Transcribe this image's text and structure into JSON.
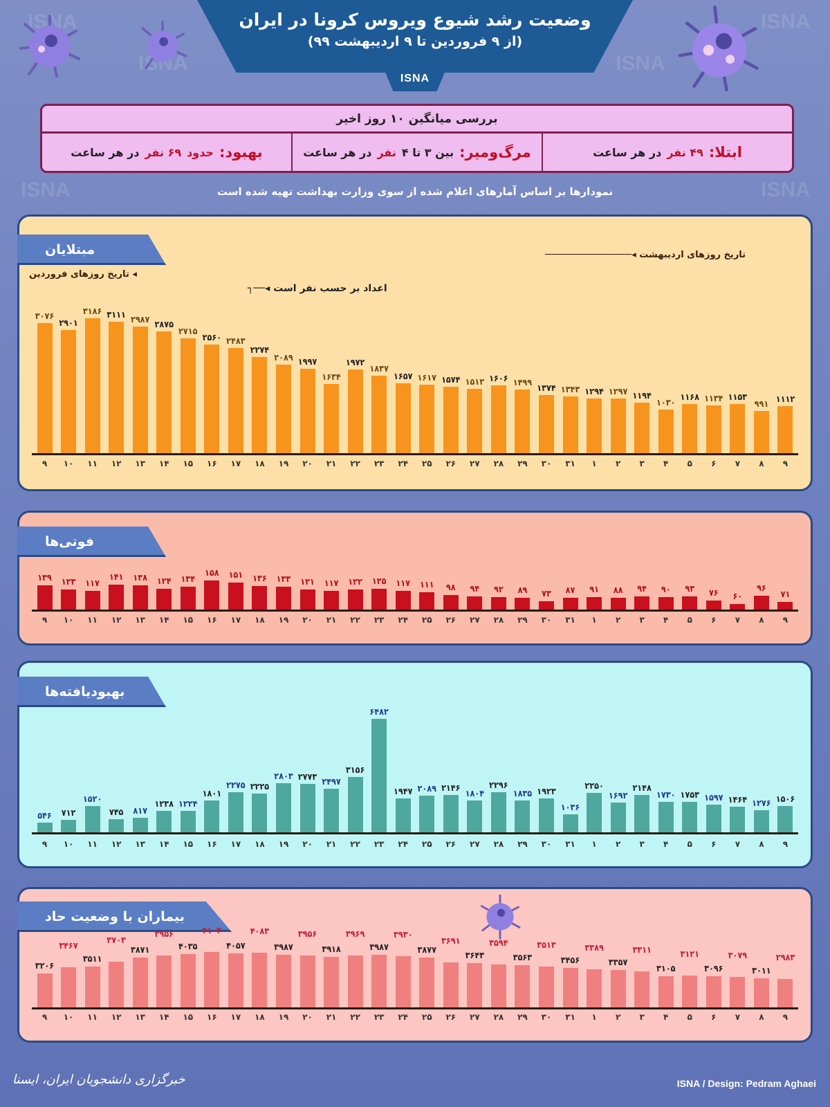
{
  "header": {
    "title": "وضعیت رشد شیوع ویروس کرونا در ایران",
    "subtitle": "(از ۹ فروردین تا ۹ اردیبهشت ۹۹)",
    "agency": "ISNA"
  },
  "summary": {
    "heading": "بررسی میانگین ۱۰ روز اخیر",
    "infection": {
      "label": "ابتلا:",
      "value": "۴۹ نفر",
      "suffix": "در هر ساعت"
    },
    "deaths": {
      "label": "مرگ‌ومیر:",
      "prefix": "بین ۳ تا ۴",
      "value": "نفر",
      "suffix": "در هر ساعت"
    },
    "recovery": {
      "label": "بهبود:",
      "prefix": "حدود",
      "value": "۶۹ نفر",
      "suffix": "در هر ساعت"
    }
  },
  "note": "نمودارها بر اساس آمارهای اعلام شده از سوی وزارت بهداشت تهیه شده است",
  "annotations": {
    "farvardin_dates": "تاریخ روزهای فروردین",
    "ordibehesht_dates": "تاریخ روزهای اردیبهشت",
    "units": "اعداد بر حسب نفر است"
  },
  "colors": {
    "background": "#6f82c0",
    "header_blue": "#1e5a95",
    "infected_bar": "#f7941d",
    "deaths_bar": "#c8101e",
    "recovered_bar": "#4fa8a0",
    "critical_bar": "#f08080"
  },
  "chart_data": [
    {
      "type": "bar",
      "title": "مبتلایان",
      "xlabel": "تاریخ روزهای فروردین / اردیبهشت",
      "ylabel": "اعداد بر حسب نفر است",
      "categories": [
        "9",
        "10",
        "11",
        "12",
        "13",
        "14",
        "15",
        "16",
        "17",
        "18",
        "19",
        "20",
        "21",
        "22",
        "23",
        "24",
        "25",
        "26",
        "27",
        "28",
        "29",
        "30",
        "31",
        "1",
        "2",
        "3",
        "4",
        "5",
        "6",
        "7",
        "8",
        "9"
      ],
      "values": [
        3076,
        2901,
        3186,
        3111,
        2987,
        2875,
        2715,
        2560,
        2483,
        2274,
        2089,
        1997,
        1634,
        1972,
        1837,
        1657,
        1617,
        1574,
        1512,
        1606,
        1499,
        1374,
        1343,
        1294,
        1297,
        1194,
        1030,
        1168,
        1134,
        1153,
        991,
        1112
      ],
      "labels": [
        "۳۰۷۶",
        "۲۹۰۱",
        "۳۱۸۶",
        "۳۱۱۱",
        "۲۹۸۷",
        "۲۸۷۵",
        "۲۷۱۵",
        "۲۵۶۰",
        "۲۴۸۳",
        "۲۲۷۴",
        "۲۰۸۹",
        "۱۹۹۷",
        "۱۶۳۴",
        "۱۹۷۲",
        "۱۸۳۷",
        "۱۶۵۷",
        "۱۶۱۷",
        "۱۵۷۴",
        "۱۵۱۲",
        "۱۶۰۶",
        "۱۴۹۹",
        "۱۳۷۴",
        "۱۳۴۳",
        "۱۲۹۴",
        "۱۲۹۷",
        "۱۱۹۴",
        "۱۰۳۰",
        "۱۱۶۸",
        "۱۱۳۴",
        "۱۱۵۳",
        "۹۹۱",
        "۱۱۱۲"
      ],
      "ylim": [
        0,
        3300
      ]
    },
    {
      "type": "bar",
      "title": "فوتی‌ها",
      "categories": [
        "9",
        "10",
        "11",
        "12",
        "13",
        "14",
        "15",
        "16",
        "17",
        "18",
        "19",
        "20",
        "21",
        "22",
        "23",
        "24",
        "25",
        "26",
        "27",
        "28",
        "29",
        "30",
        "31",
        "1",
        "2",
        "3",
        "4",
        "5",
        "6",
        "7",
        "8",
        "9"
      ],
      "values": [
        139,
        123,
        117,
        141,
        138,
        124,
        134,
        158,
        151,
        136,
        133,
        121,
        117,
        122,
        125,
        117,
        111,
        98,
        94,
        92,
        89,
        73,
        87,
        91,
        88,
        94,
        90,
        93,
        76,
        60,
        96,
        71
      ],
      "labels": [
        "۱۳۹",
        "۱۲۳",
        "۱۱۷",
        "۱۴۱",
        "۱۳۸",
        "۱۲۴",
        "۱۳۴",
        "۱۵۸",
        "۱۵۱",
        "۱۳۶",
        "۱۳۳",
        "۱۲۱",
        "۱۱۷",
        "۱۲۲",
        "۱۲۵",
        "۱۱۷",
        "۱۱۱",
        "۹۸",
        "۹۴",
        "۹۲",
        "۸۹",
        "۷۳",
        "۸۷",
        "۹۱",
        "۸۸",
        "۹۴",
        "۹۰",
        "۹۳",
        "۷۶",
        "۶۰",
        "۹۶",
        "۷۱"
      ],
      "ylim": [
        0,
        170
      ]
    },
    {
      "type": "bar",
      "title": "بهبودیافته‌ها",
      "categories": [
        "9",
        "10",
        "11",
        "12",
        "13",
        "14",
        "15",
        "16",
        "17",
        "18",
        "19",
        "20",
        "21",
        "22",
        "23",
        "24",
        "25",
        "26",
        "27",
        "28",
        "29",
        "30",
        "31",
        "1",
        "2",
        "3",
        "4",
        "5",
        "6",
        "7",
        "8",
        "9"
      ],
      "values": [
        546,
        712,
        1520,
        745,
        817,
        1238,
        1224,
        1801,
        2275,
        2225,
        2803,
        2773,
        2497,
        3156,
        6482,
        1947,
        2089,
        2146,
        1804,
        2296,
        1835,
        1923,
        1036,
        2250,
        1692,
        2148,
        1730,
        1753,
        1597,
        1464,
        1276,
        1506
      ],
      "labels": [
        "۵۴۶",
        "۷۱۲",
        "۱۵۲۰",
        "۷۴۵",
        "۸۱۷",
        "۱۲۳۸",
        "۱۲۲۴",
        "۱۸۰۱",
        "۲۲۷۵",
        "۲۲۲۵",
        "۲۸۰۳",
        "۲۷۷۳",
        "۲۴۹۷",
        "۳۱۵۶",
        "۶۴۸۲",
        "۱۹۴۷",
        "۲۰۸۹",
        "۲۱۴۶",
        "۱۸۰۴",
        "۲۲۹۶",
        "۱۸۳۵",
        "۱۹۲۳",
        "۱۰۳۶",
        "۲۲۵۰",
        "۱۶۹۲",
        "۲۱۴۸",
        "۱۷۳۰",
        "۱۷۵۳",
        "۱۵۹۷",
        "۱۴۶۴",
        "۱۲۷۶",
        "۱۵۰۶"
      ],
      "ylim": [
        0,
        6800
      ]
    },
    {
      "type": "bar",
      "title": "بیماران با وضعیت حاد",
      "categories": [
        "9",
        "10",
        "11",
        "12",
        "13",
        "14",
        "15",
        "16",
        "17",
        "18",
        "19",
        "20",
        "21",
        "22",
        "23",
        "24",
        "25",
        "26",
        "27",
        "28",
        "29",
        "30",
        "31",
        "1",
        "2",
        "3",
        "4",
        "5",
        "6",
        "7",
        "8",
        "9"
      ],
      "values": [
        3206,
        3467,
        3511,
        3703,
        3871,
        3956,
        4035,
        4103,
        4057,
        4083,
        3987,
        3956,
        3918,
        3969,
        3987,
        3930,
        3877,
        3691,
        3643,
        3594,
        3563,
        3513,
        3456,
        3389,
        3357,
        3311,
        3105,
        3121,
        3096,
        3079,
        3011,
        2983
      ],
      "labels": [
        "۳۲۰۶",
        "۳۴۶۷",
        "۳۵۱۱",
        "۳۷۰۳",
        "۳۸۷۱",
        "۳۹۵۶",
        "۴۰۳۵",
        "۴۱۰۳",
        "۴۰۵۷",
        "۴۰۸۳",
        "۳۹۸۷",
        "۳۹۵۶",
        "۳۹۱۸",
        "۳۹۶۹",
        "۳۹۸۷",
        "۳۹۳۰",
        "۳۸۷۷",
        "۳۶۹۱",
        "۳۶۴۳",
        "۳۵۹۴",
        "۳۵۶۳",
        "۳۵۱۳",
        "۳۴۵۶",
        "۳۳۸۹",
        "۳۳۵۷",
        "۳۳۱۱",
        "۳۱۰۵",
        "۳۱۲۱",
        "۳۰۹۶",
        "۳۰۷۹",
        "۳۰۱۱",
        "۲۹۸۳"
      ],
      "ylim": [
        0,
        4200
      ]
    }
  ],
  "x_tick_labels": [
    "۹",
    "۱۰",
    "۱۱",
    "۱۲",
    "۱۳",
    "۱۴",
    "۱۵",
    "۱۶",
    "۱۷",
    "۱۸",
    "۱۹",
    "۲۰",
    "۲۱",
    "۲۲",
    "۲۳",
    "۲۴",
    "۲۵",
    "۲۶",
    "۲۷",
    "۲۸",
    "۲۹",
    "۳۰",
    "۳۱",
    "۱",
    "۲",
    "۳",
    "۴",
    "۵",
    "۶",
    "۷",
    "۸",
    "۹"
  ],
  "footer": {
    "left": "خبرگزاری دانشجویان ایران، ایسنا",
    "right": "ISNA / Design: Pedram Aghaei"
  },
  "watermark": "ISNA"
}
